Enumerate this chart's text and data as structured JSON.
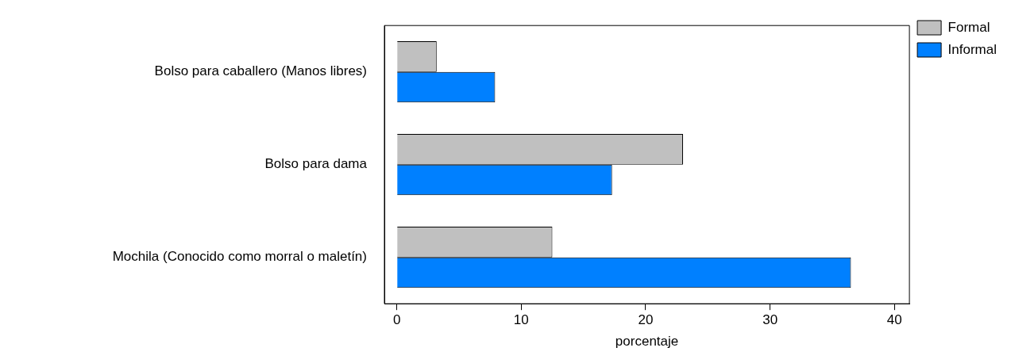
{
  "chart_data": {
    "type": "bar",
    "orientation": "horizontal",
    "xlabel": "porcentaje",
    "categories": [
      "Bolso para caballero (Manos libres)",
      "Bolso para dama",
      "Mochila (Conocido como morral o maletín)"
    ],
    "series": [
      {
        "name": "Formal",
        "color": "#c0c0c0",
        "values": [
          3.2,
          23.0,
          12.5
        ]
      },
      {
        "name": "Informal",
        "color": "#0080ff",
        "values": [
          7.9,
          17.3,
          36.5
        ]
      }
    ],
    "xlim": [
      -1,
      41.2
    ],
    "xticks": [
      0,
      10,
      20,
      30,
      40
    ],
    "legend": "top right"
  }
}
